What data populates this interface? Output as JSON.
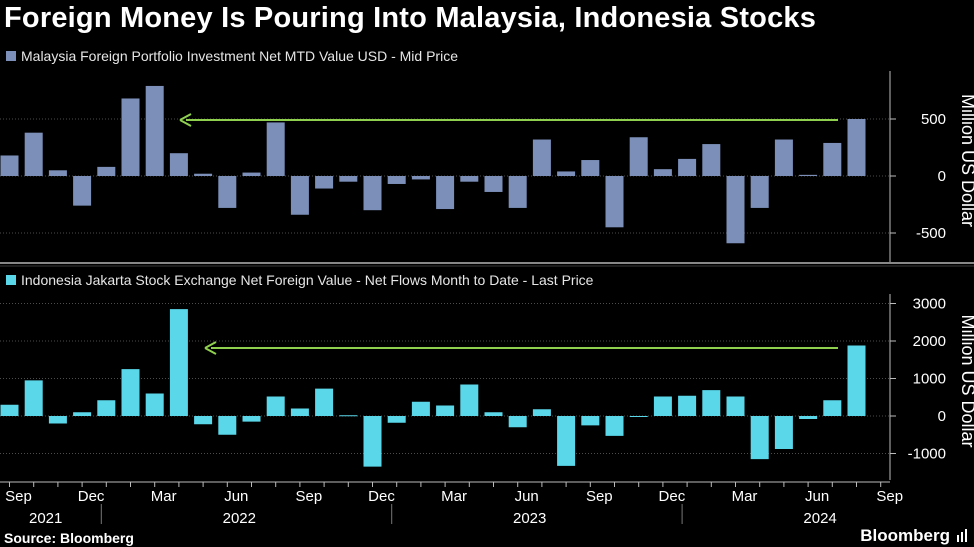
{
  "title": "Foreign Money Is Pouring Into Malaysia, Indonesia Stocks",
  "source": "Source: Bloomberg",
  "brand": "Bloomberg",
  "chart_data": [
    {
      "type": "bar",
      "legend": "Malaysia Foreign Portfolio Investment Net MTD Value USD - Mid Price",
      "ylabel": "Million US Dollar",
      "color": "#7b8fb8",
      "ylim": [
        -750,
        900
      ],
      "yticks": [
        500,
        0,
        -500
      ],
      "ytick_labels": [
        "500",
        "0",
        "-500"
      ],
      "values": [
        180,
        380,
        50,
        -260,
        80,
        680,
        790,
        200,
        20,
        -280,
        30,
        470,
        -340,
        -110,
        -50,
        -300,
        -70,
        -30,
        -290,
        -50,
        -140,
        -280,
        320,
        40,
        140,
        -450,
        340,
        60,
        150,
        280,
        -590,
        -280,
        320,
        10,
        290,
        500
      ],
      "annotation": "arrow"
    },
    {
      "type": "bar",
      "legend": "Indonesia Jakarta Stock Exchange Net Foreign Value - Net Flows Month to Date - Last Price",
      "ylabel": "Million US Dollar",
      "color": "#5ad8ea",
      "ylim": [
        -1450,
        3300
      ],
      "yticks": [
        3000,
        2000,
        1000,
        0,
        -1000
      ],
      "ytick_labels": [
        "3000",
        "2000",
        "1000",
        "0",
        "-1000"
      ],
      "values": [
        300,
        950,
        -200,
        100,
        420,
        1250,
        600,
        2850,
        -220,
        -500,
        -150,
        520,
        200,
        730,
        20,
        -1350,
        -180,
        380,
        280,
        840,
        100,
        -300,
        180,
        -1330,
        -250,
        -530,
        0,
        520,
        540,
        690,
        520,
        -1150,
        -880,
        -80,
        420,
        1880
      ],
      "annotation": "arrow"
    }
  ],
  "x_axis": {
    "months": [
      "Sep",
      "Dec",
      "Mar",
      "Jun",
      "Sep",
      "Dec",
      "Mar",
      "Jun",
      "Sep",
      "Dec",
      "Mar",
      "Jun",
      "Sep"
    ],
    "month_index": [
      0,
      3,
      6,
      9,
      12,
      15,
      18,
      21,
      24,
      27,
      30,
      33,
      36
    ],
    "years": [
      "2021",
      "2022",
      "2023",
      "2024"
    ],
    "year_center_index": [
      1,
      9,
      21,
      33
    ]
  }
}
